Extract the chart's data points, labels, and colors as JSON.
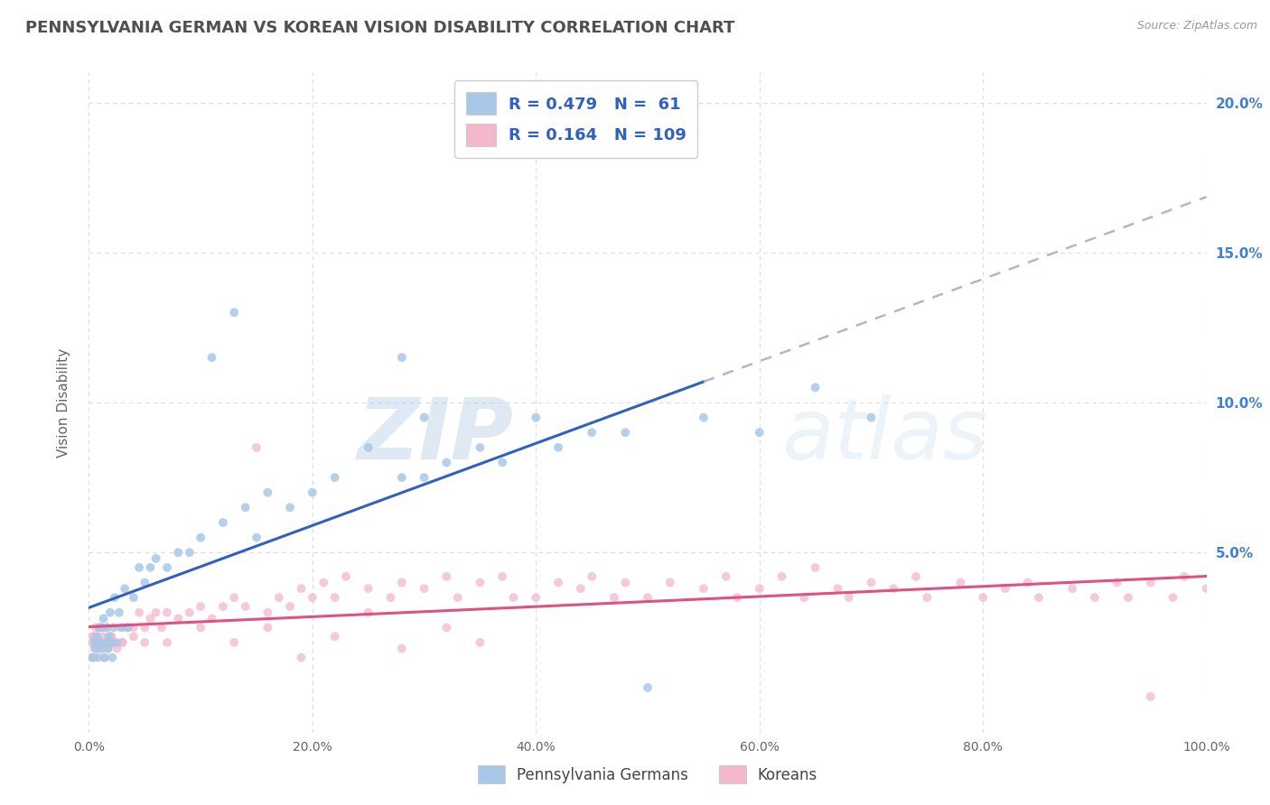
{
  "title": "PENNSYLVANIA GERMAN VS KOREAN VISION DISABILITY CORRELATION CHART",
  "source_text": "Source: ZipAtlas.com",
  "ylabel": "Vision Disability",
  "xlim": [
    0,
    100
  ],
  "ylim": [
    -1,
    21
  ],
  "x_tick_labels": [
    "0.0%",
    "20.0%",
    "40.0%",
    "60.0%",
    "80.0%",
    "100.0%"
  ],
  "x_tick_values": [
    0,
    20,
    40,
    60,
    80,
    100
  ],
  "y_tick_labels": [
    "5.0%",
    "10.0%",
    "15.0%",
    "20.0%"
  ],
  "y_tick_values": [
    5,
    10,
    15,
    20
  ],
  "watermark": "ZIPatlas",
  "legend_R1": "0.479",
  "legend_N1": "61",
  "legend_R2": "0.164",
  "legend_N2": "109",
  "legend_label1": "Pennsylvania Germans",
  "legend_label2": "Koreans",
  "color1": "#a8c8e8",
  "color2": "#f4b8cc",
  "trendline1_color": "#3060c0",
  "trendline2_color": "#e05080",
  "trendline_dash_color": "#b0b8c8",
  "background_color": "#ffffff",
  "grid_color": "#d8dce8",
  "title_color": "#505050",
  "title_fontsize": 13,
  "pg_x": [
    0.3,
    0.5,
    0.6,
    0.7,
    0.8,
    0.9,
    1.0,
    1.1,
    1.2,
    1.3,
    1.4,
    1.5,
    1.6,
    1.7,
    1.8,
    1.9,
    2.0,
    2.1,
    2.2,
    2.3,
    2.5,
    2.7,
    3.0,
    3.2,
    3.5,
    4.0,
    4.5,
    5.0,
    5.5,
    6.0,
    7.0,
    8.0,
    9.0,
    10.0,
    11.0,
    12.0,
    13.0,
    14.0,
    15.0,
    16.0,
    18.0,
    20.0,
    22.0,
    25.0,
    28.0,
    30.0,
    32.0,
    35.0,
    37.0,
    40.0,
    42.0,
    45.0,
    48.0,
    28.0,
    30.0,
    50.0,
    52.0,
    55.0,
    60.0,
    65.0,
    70.0
  ],
  "pg_y": [
    1.5,
    2.0,
    1.8,
    2.2,
    1.5,
    2.5,
    2.0,
    1.8,
    2.5,
    2.8,
    1.5,
    2.0,
    2.5,
    1.8,
    2.2,
    3.0,
    2.0,
    1.5,
    2.5,
    3.5,
    2.0,
    3.0,
    2.5,
    3.8,
    2.5,
    3.5,
    4.5,
    4.0,
    4.5,
    4.8,
    4.5,
    5.0,
    5.0,
    5.5,
    11.5,
    6.0,
    13.0,
    6.5,
    5.5,
    7.0,
    6.5,
    7.0,
    7.5,
    8.5,
    7.5,
    7.5,
    8.0,
    8.5,
    8.0,
    9.5,
    8.5,
    9.0,
    9.0,
    11.5,
    9.5,
    0.5,
    19.0,
    9.5,
    9.0,
    10.5,
    9.5
  ],
  "ko_x": [
    0.2,
    0.3,
    0.4,
    0.5,
    0.6,
    0.7,
    0.8,
    0.9,
    1.0,
    1.1,
    1.2,
    1.3,
    1.4,
    1.5,
    1.6,
    1.7,
    1.8,
    2.0,
    2.2,
    2.5,
    2.8,
    3.0,
    3.5,
    4.0,
    4.5,
    5.0,
    5.5,
    6.0,
    6.5,
    7.0,
    8.0,
    9.0,
    10.0,
    11.0,
    12.0,
    13.0,
    14.0,
    15.0,
    16.0,
    17.0,
    18.0,
    19.0,
    20.0,
    21.0,
    22.0,
    23.0,
    25.0,
    27.0,
    28.0,
    30.0,
    32.0,
    33.0,
    35.0,
    37.0,
    38.0,
    40.0,
    42.0,
    44.0,
    45.0,
    47.0,
    48.0,
    50.0,
    52.0,
    55.0,
    57.0,
    58.0,
    60.0,
    62.0,
    64.0,
    65.0,
    67.0,
    68.0,
    70.0,
    72.0,
    74.0,
    75.0,
    78.0,
    80.0,
    82.0,
    84.0,
    85.0,
    88.0,
    90.0,
    92.0,
    93.0,
    95.0,
    97.0,
    98.0,
    100.0,
    0.4,
    0.5,
    0.7,
    1.0,
    1.5,
    2.0,
    3.0,
    4.0,
    5.0,
    7.0,
    10.0,
    13.0,
    16.0,
    19.0,
    22.0,
    25.0,
    28.0,
    32.0,
    35.0,
    95.0
  ],
  "ko_y": [
    2.0,
    1.5,
    2.2,
    1.8,
    2.5,
    2.0,
    2.2,
    1.8,
    2.5,
    2.0,
    1.8,
    2.2,
    1.5,
    2.0,
    2.5,
    1.8,
    2.0,
    2.2,
    2.0,
    1.8,
    2.5,
    2.0,
    2.5,
    2.2,
    3.0,
    2.5,
    2.8,
    3.0,
    2.5,
    3.0,
    2.8,
    3.0,
    3.2,
    2.8,
    3.2,
    3.5,
    3.2,
    8.5,
    3.0,
    3.5,
    3.2,
    3.8,
    3.5,
    4.0,
    3.5,
    4.2,
    3.8,
    3.5,
    4.0,
    3.8,
    4.2,
    3.5,
    4.0,
    4.2,
    3.5,
    3.5,
    4.0,
    3.8,
    4.2,
    3.5,
    4.0,
    3.5,
    4.0,
    3.8,
    4.2,
    3.5,
    3.8,
    4.2,
    3.5,
    4.5,
    3.8,
    3.5,
    4.0,
    3.8,
    4.2,
    3.5,
    4.0,
    3.5,
    3.8,
    4.0,
    3.5,
    3.8,
    3.5,
    4.0,
    3.5,
    4.0,
    3.5,
    4.2,
    3.8,
    2.2,
    1.5,
    2.0,
    2.5,
    2.0,
    2.2,
    2.0,
    2.5,
    2.0,
    2.0,
    2.5,
    2.0,
    2.5,
    1.5,
    2.2,
    3.0,
    1.8,
    2.5,
    2.0,
    0.2
  ]
}
